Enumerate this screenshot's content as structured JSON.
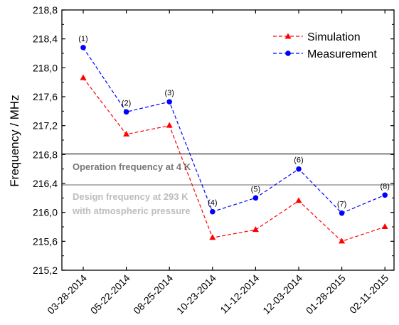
{
  "chart_data": {
    "type": "line",
    "ylabel": "Frequency / MHz",
    "xlabel": "",
    "categories": [
      "03-28-2014",
      "05-22-2014",
      "08-25-2014",
      "10-23-2014",
      "11-12-2014",
      "12-03-2014",
      "01-28-2015",
      "02-11-2015"
    ],
    "point_labels": [
      "(1)",
      "(2)",
      "(3)",
      "(4)",
      "(5)",
      "(6)",
      "(7)",
      "(8)"
    ],
    "series": [
      {
        "name": "Simulation",
        "color": "#ff0000",
        "marker": "triangle",
        "line_style": "dashed",
        "values": [
          217.86,
          217.08,
          217.2,
          215.65,
          215.76,
          216.16,
          215.6,
          215.8
        ]
      },
      {
        "name": "Measurement",
        "color": "#0000ff",
        "marker": "circle",
        "line_style": "dashed",
        "values": [
          218.28,
          217.39,
          217.53,
          216.01,
          216.2,
          216.6,
          215.99,
          216.24
        ]
      }
    ],
    "ylim": [
      215.2,
      218.8
    ],
    "yticks": [
      "215,2",
      "215,6",
      "216,0",
      "216,4",
      "216,8",
      "217,2",
      "217,6",
      "218,0",
      "218,4",
      "218,8"
    ],
    "reference_lines": [
      {
        "label": "Operation frequency at 4 K",
        "value": 216.81,
        "color": "#808080",
        "text_color": "#777777"
      },
      {
        "label_line1": "Design frequency at 293 K",
        "label_line2": "with atmospheric pressure",
        "value": 216.38,
        "color": "#b3b3b3",
        "text_color": "#bdbdbd"
      }
    ],
    "legend_position": "top-right",
    "grid": false
  }
}
